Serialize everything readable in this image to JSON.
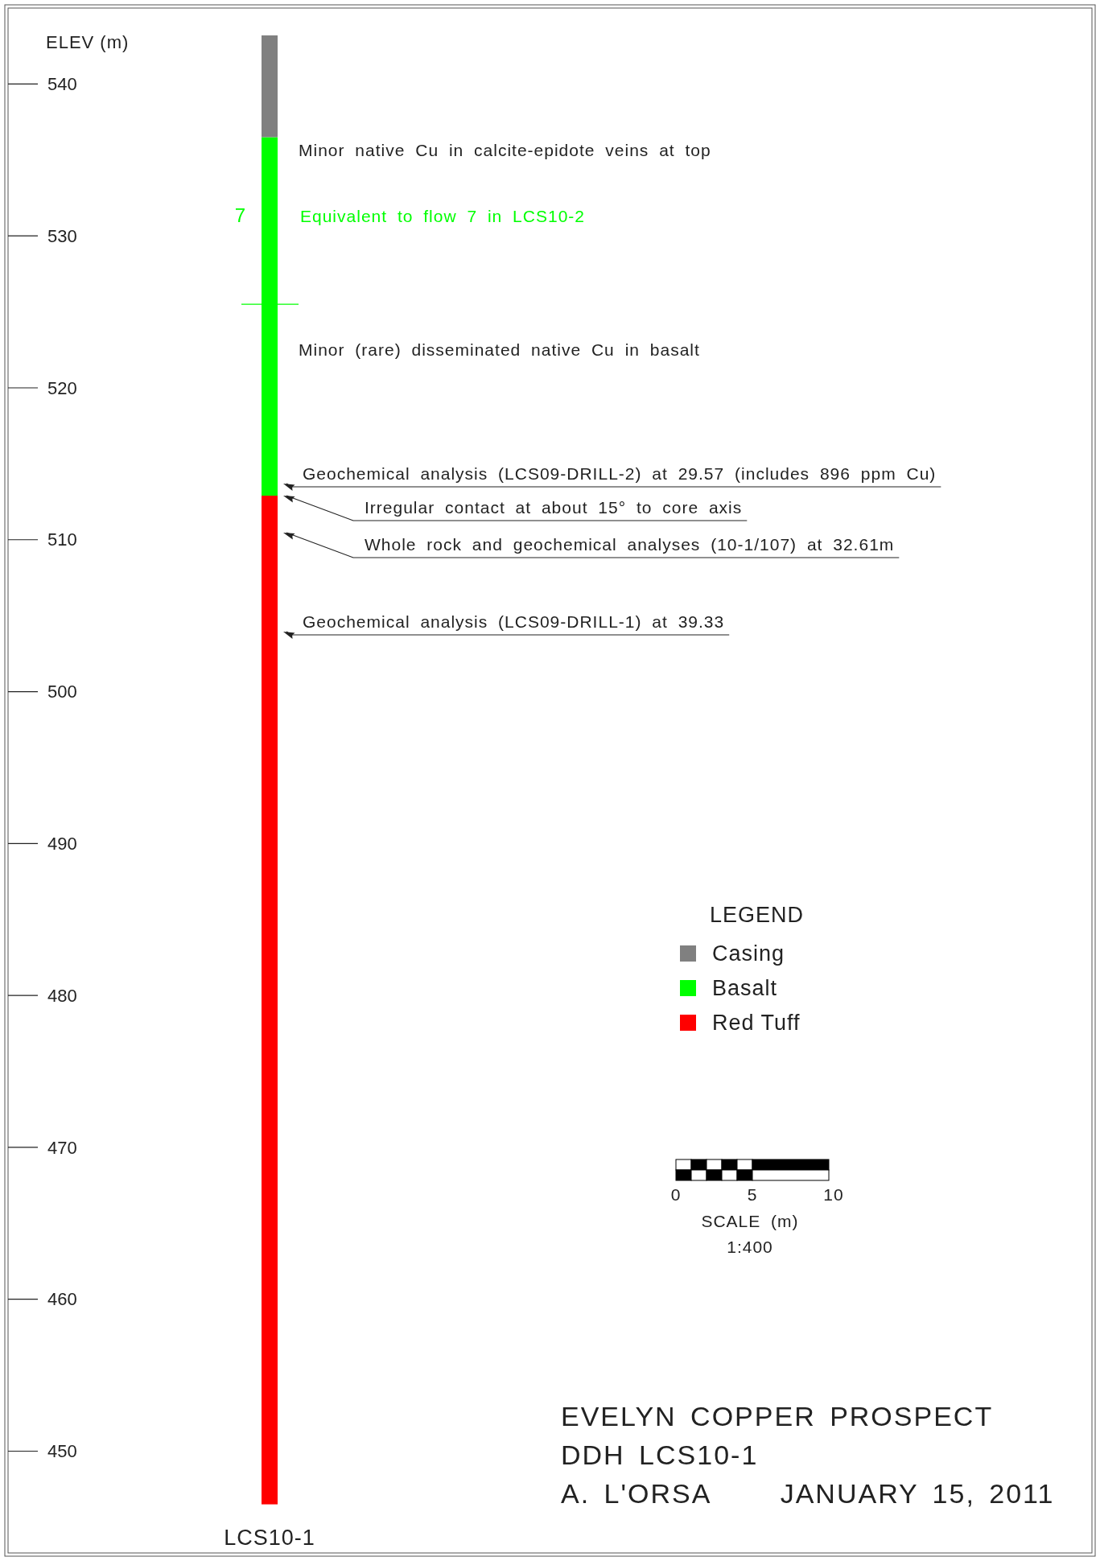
{
  "chart_data": {
    "type": "bar",
    "title": "EVELYN COPPER PROSPECT",
    "subtitle": "DDH LCS10-1",
    "ylabel": "ELEV (m)",
    "legend_title": "LEGEND",
    "legend": "right",
    "categories": [
      "LCS10-1"
    ],
    "series": [
      {
        "name": "Red Tuff",
        "color": "#ff0000",
        "values": [
          66.4
        ],
        "base": [
          446.5
        ]
      },
      {
        "name": "Basalt",
        "color": "#00ff00",
        "values": [
          23.6
        ],
        "base": [
          512.9
        ]
      },
      {
        "name": "Casing",
        "color": "#808080",
        "values": [
          6.7
        ],
        "base": [
          536.5
        ]
      }
    ],
    "ylim": [
      443.3,
      545
    ],
    "yticks": [
      450,
      460,
      470,
      480,
      490,
      500,
      510,
      520,
      530,
      540
    ],
    "ref_lines": [
      {
        "axis": "y",
        "value": 525.5,
        "color": "#00ff00"
      }
    ],
    "annotations": [
      "Minor native Cu in calcite-epidote veins at top",
      "7",
      "Equivalent to flow 7 in LCS10-2",
      "Minor (rare) disseminated native Cu in basalt",
      "Geochemical analysis (LCS09-DRILL-2) at 29.57 (includes 896 ppm Cu)",
      "Irregular contact at about 15° to core axis",
      "Whole rock and geochemical analyses (10-1/107) at 32.61m",
      "Geochemical analysis (LCS09-DRILL-1) at 39.33",
      "0",
      "5",
      "10",
      "SCALE (m)",
      "1:400",
      "A. L'ORSA     JANUARY 15, 2011"
    ]
  }
}
